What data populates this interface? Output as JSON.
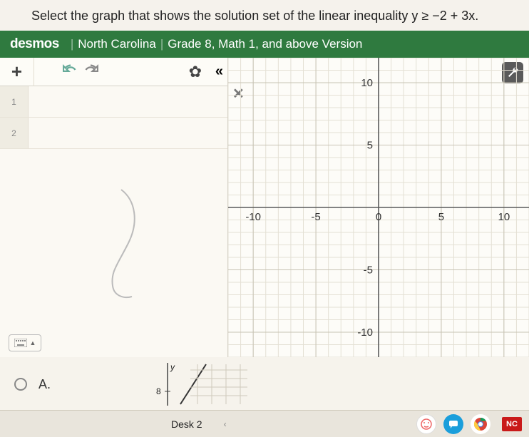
{
  "question": "Select the graph that shows the solution set of the linear inequality y ≥ −2 + 3x.",
  "header": {
    "logo": "desmos",
    "region": "North Carolina",
    "version": "Grade 8, Math 1, and above Version"
  },
  "toolbar": {
    "plus": "+",
    "gear": "✿",
    "collapse": "«"
  },
  "expressions": [
    {
      "index": "1"
    },
    {
      "index": "2"
    }
  ],
  "close_glyph": "✕",
  "graph": {
    "xlim": [
      -12,
      12
    ],
    "ylim": [
      -12,
      12
    ],
    "xticks": [
      -10,
      -5,
      0,
      5,
      10
    ],
    "yticks": [
      -10,
      -5,
      5,
      10
    ],
    "grid_minor_color": "#e4e0d4",
    "grid_major_color": "#c8c3b4",
    "axis_color": "#5a5a5a",
    "label_color": "#333333",
    "label_fontsize": 15,
    "background": "#fdfcf8"
  },
  "answer": {
    "option_label": "A.",
    "mini": {
      "y_label": "y",
      "x_value": "8"
    }
  },
  "taskbar": {
    "desk_label": "Desk 2",
    "nc_badge": "NC"
  },
  "colors": {
    "header_bg": "#2f7a3f",
    "wrench_bg": "#5a5a5a",
    "page_bg": "#f0ede6"
  }
}
